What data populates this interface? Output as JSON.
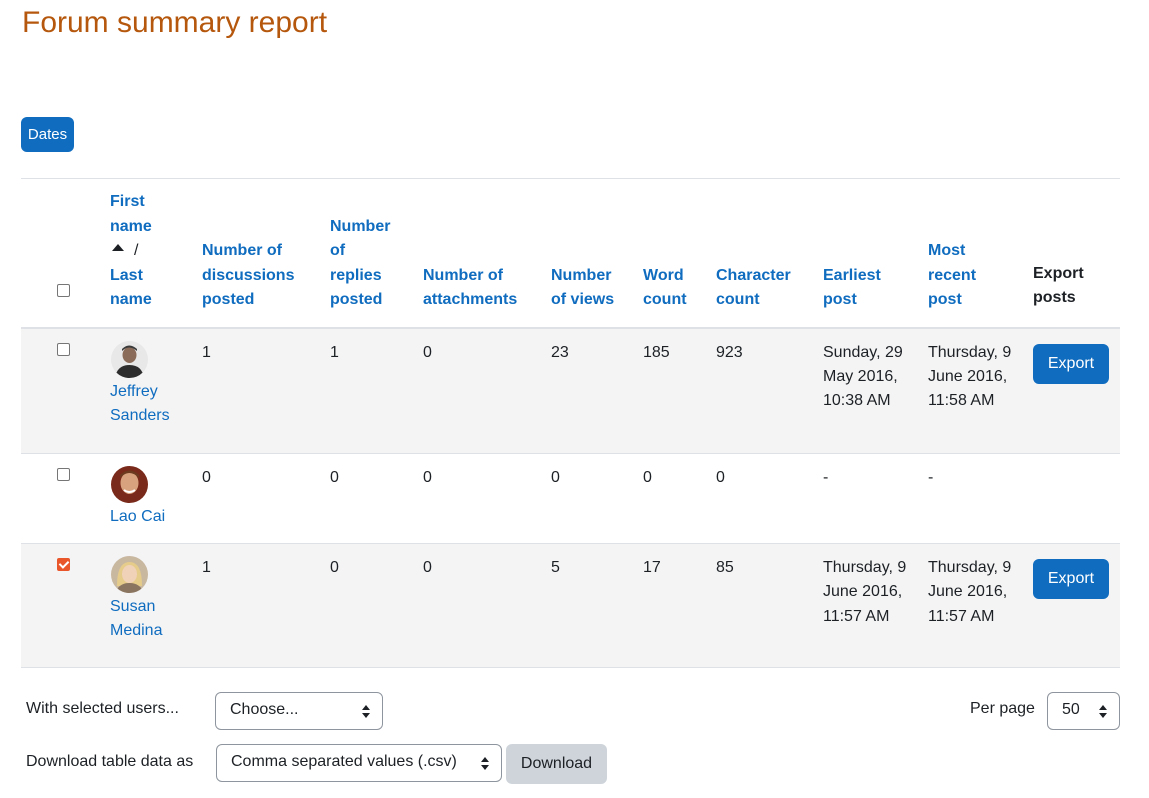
{
  "page": {
    "title": "Forum summary report"
  },
  "filters": {
    "dates_label": "Dates"
  },
  "table": {
    "headers": {
      "first_name": "First name",
      "slash": "/",
      "last_name": "Last name",
      "discussions": "Number of discussions posted",
      "replies": "Number of replies posted",
      "attachments": "Number of attachments",
      "views": "Number of views",
      "word_count": "Word count",
      "char_count": "Character count",
      "earliest": "Earliest post",
      "recent": "Most recent post",
      "export": "Export posts"
    },
    "rows": [
      {
        "name": "Jeffrey Sanders",
        "checked": false,
        "avatar": "man-avatar",
        "discussions": "1",
        "replies": "1",
        "attachments": "0",
        "views": "23",
        "words": "185",
        "chars": "923",
        "earliest": "Sunday, 29 May 2016, 10:38 AM",
        "recent": "Thursday, 9 June 2016, 11:58 AM",
        "export_label": "Export"
      },
      {
        "name": "Lao Cai",
        "checked": false,
        "avatar": "man-avatar",
        "discussions": "0",
        "replies": "0",
        "attachments": "0",
        "views": "0",
        "words": "0",
        "chars": "0",
        "earliest": "-",
        "recent": "-",
        "export_label": ""
      },
      {
        "name": "Susan Medina",
        "checked": true,
        "avatar": "woman-avatar",
        "discussions": "1",
        "replies": "0",
        "attachments": "0",
        "views": "5",
        "words": "17",
        "chars": "85",
        "earliest": "Thursday, 9 June 2016, 11:57 AM",
        "recent": "Thursday, 9 June 2016, 11:57 AM",
        "export_label": "Export"
      }
    ]
  },
  "footer": {
    "with_selected_label": "With selected users...",
    "with_selected_value": "Choose...",
    "per_page_label": "Per page",
    "per_page_value": "50",
    "download_label": "Download table data as",
    "download_format": "Comma separated values (.csv)",
    "download_button": "Download"
  },
  "colors": {
    "accent": "#0f6cbf",
    "title": "#b5570c",
    "checkbox_checked": "#e8562a"
  }
}
